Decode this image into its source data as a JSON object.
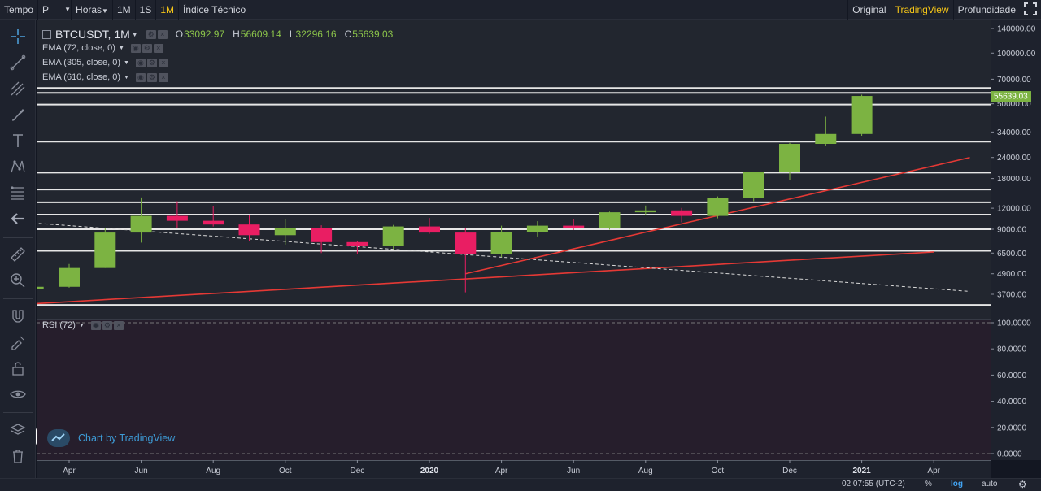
{
  "toolbar": {
    "time_label": "Tempo",
    "interval_value": "P",
    "hours_label": "Horas",
    "intervals": [
      "1M",
      "1S",
      "1M"
    ],
    "indicator_label": "Índice Técnico",
    "views": [
      "Original",
      "TradingView",
      "Profundidade"
    ],
    "active_view": "TradingView",
    "fullscreen_icon": "expand-icon"
  },
  "legend": {
    "symbol": "BTCUSDT, 1M",
    "open_label": "O",
    "open": "33092.97",
    "high_label": "H",
    "high": "56609.14",
    "low_label": "L",
    "low": "32296.16",
    "close_label": "C",
    "close": "55639.03",
    "ema": [
      "EMA (72, close, 0)",
      "EMA (305, close, 0)",
      "EMA (610, close, 0)"
    ],
    "rsi": "RSI (72)"
  },
  "watermark": "Chart by TradingView",
  "status": {
    "time": "02:07:55 (UTC-2)",
    "percent": "%",
    "log": "log",
    "auto": "auto"
  },
  "colors": {
    "up": "#7cb342",
    "down": "#e91e63",
    "trendline": "#e53935",
    "active": "#f5c518",
    "log_active": "#42a5f5"
  },
  "chart_data": {
    "type": "candlestick",
    "scale": "log",
    "price_axis_labels": [
      "140000.00",
      "100000.00",
      "70000.00",
      "50000.00",
      "34000.00",
      "24000.00",
      "18000.00",
      "12000.00",
      "9000.00",
      "6500.00",
      "4900.00",
      "3700.00"
    ],
    "last_price_label": "55639.03",
    "time_axis_labels": [
      "Apr",
      "Jun",
      "Aug",
      "Oct",
      "Dec",
      "2020",
      "Apr",
      "Jun",
      "Aug",
      "Oct",
      "Dec",
      "2021",
      "Apr"
    ],
    "rsi_axis_labels": [
      "100.0000",
      "80.0000",
      "60.0000",
      "40.0000",
      "20.0000",
      "0.0000"
    ],
    "candles": [
      {
        "t": "2019-03",
        "o": 4000,
        "h": 4200,
        "l": 3950,
        "c": 4100
      },
      {
        "t": "2019-04",
        "o": 4100,
        "h": 5600,
        "l": 4050,
        "c": 5300
      },
      {
        "t": "2019-05",
        "o": 5300,
        "h": 9100,
        "l": 5300,
        "c": 8600
      },
      {
        "t": "2019-06",
        "o": 8600,
        "h": 13900,
        "l": 7500,
        "c": 10800
      },
      {
        "t": "2019-07",
        "o": 10800,
        "h": 13200,
        "l": 9100,
        "c": 10100
      },
      {
        "t": "2019-08",
        "o": 10100,
        "h": 12300,
        "l": 9350,
        "c": 9600
      },
      {
        "t": "2019-09",
        "o": 9600,
        "h": 10950,
        "l": 7700,
        "c": 8300
      },
      {
        "t": "2019-10",
        "o": 8300,
        "h": 10300,
        "l": 7300,
        "c": 9150
      },
      {
        "t": "2019-11",
        "o": 9150,
        "h": 9500,
        "l": 6500,
        "c": 7550
      },
      {
        "t": "2019-12",
        "o": 7550,
        "h": 7700,
        "l": 6450,
        "c": 7200
      },
      {
        "t": "2020-01",
        "o": 7200,
        "h": 9550,
        "l": 6850,
        "c": 9350
      },
      {
        "t": "2020-02",
        "o": 9350,
        "h": 10500,
        "l": 8450,
        "c": 8600
      },
      {
        "t": "2020-03",
        "o": 8600,
        "h": 9200,
        "l": 3800,
        "c": 6400
      },
      {
        "t": "2020-04",
        "o": 6400,
        "h": 9450,
        "l": 6150,
        "c": 8650
      },
      {
        "t": "2020-05",
        "o": 8650,
        "h": 10050,
        "l": 8150,
        "c": 9450
      },
      {
        "t": "2020-06",
        "o": 9450,
        "h": 10400,
        "l": 8900,
        "c": 9150
      },
      {
        "t": "2020-07",
        "o": 9150,
        "h": 11450,
        "l": 8950,
        "c": 11350
      },
      {
        "t": "2020-08",
        "o": 11350,
        "h": 12450,
        "l": 10950,
        "c": 11650
      },
      {
        "t": "2020-09",
        "o": 11650,
        "h": 12050,
        "l": 9900,
        "c": 10800
      },
      {
        "t": "2020-10",
        "o": 10800,
        "h": 14100,
        "l": 10450,
        "c": 13800
      },
      {
        "t": "2020-11",
        "o": 13800,
        "h": 19800,
        "l": 13200,
        "c": 19700
      },
      {
        "t": "2020-12",
        "o": 19700,
        "h": 29300,
        "l": 17600,
        "c": 28900
      },
      {
        "t": "2021-01",
        "o": 28900,
        "h": 41950,
        "l": 28200,
        "c": 33100
      },
      {
        "t": "2021-02",
        "o": 33093,
        "h": 56609,
        "l": 32296,
        "c": 55639
      }
    ],
    "horizontal_levels": [
      62000,
      58000,
      49500,
      29800,
      19500,
      15500,
      13000,
      11000,
      9000,
      6700,
      3200
    ],
    "trendlines": [
      {
        "from": [
          "2019-03",
          3250
        ],
        "to": [
          "2021-04",
          6600
        ],
        "style": "solid"
      },
      {
        "from": [
          "2020-03",
          4900
        ],
        "to": [
          "2021-05",
          24000
        ],
        "style": "solid"
      },
      {
        "from": [
          "2019-03",
          9800
        ],
        "to": [
          "2021-05",
          3850
        ],
        "style": "dashed"
      }
    ]
  }
}
